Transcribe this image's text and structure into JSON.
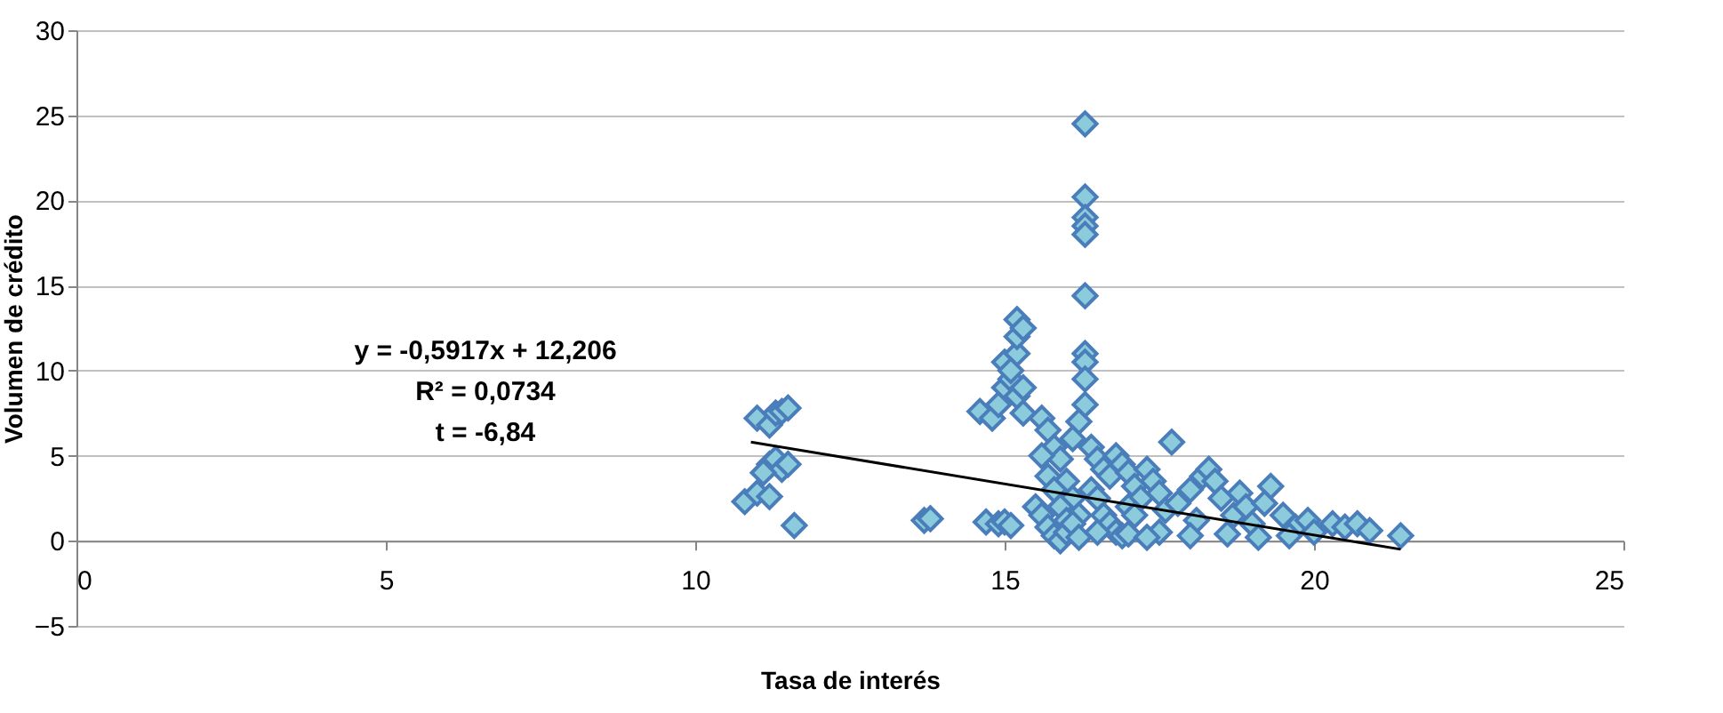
{
  "chart_data": {
    "type": "scatter",
    "xlabel": "Tasa de interés",
    "ylabel": "Volumen de crédito",
    "xlim": [
      0,
      25
    ],
    "ylim": [
      -5,
      30
    ],
    "xticks": [
      0,
      5,
      10,
      15,
      20,
      25
    ],
    "yticks": [
      -5,
      0,
      5,
      10,
      15,
      20,
      25,
      30
    ],
    "grid": "y",
    "annotations": [
      "y = -0,5917x + 12,206",
      "R² = 0,0734",
      "t = -6,84"
    ],
    "series": [
      {
        "color": "#8ccbdc",
        "marker": "diamond",
        "x": [
          10.8,
          11.0,
          11.2,
          11.0,
          11.2,
          11.3,
          11.4,
          11.5,
          11.2,
          11.3,
          11.4,
          11.5,
          11.6,
          11.1,
          13.7,
          13.8,
          14.7,
          14.9,
          15.0,
          15.1,
          14.6,
          14.8,
          14.9,
          15.0,
          15.1,
          15.0,
          15.2,
          15.2,
          15.2,
          15.3,
          15.1,
          15.2,
          15.3,
          15.3,
          16.3,
          16.3,
          16.3,
          16.3,
          16.3,
          16.3,
          16.3,
          16.3,
          16.3,
          16.3,
          16.2,
          16.1,
          15.6,
          15.7,
          15.8,
          15.9,
          16.0,
          16.1,
          16.2,
          15.6,
          15.7,
          15.8,
          15.9,
          16.0,
          16.4,
          16.5,
          15.5,
          15.6,
          15.7,
          15.8,
          15.9,
          16.0,
          16.1,
          16.2,
          16.4,
          16.5,
          16.6,
          16.7,
          16.8,
          16.9,
          17.0,
          17.1,
          17.2,
          16.6,
          16.7,
          16.8,
          16.9,
          17.0,
          17.1,
          17.3,
          17.4,
          17.5,
          17.7,
          17.6,
          17.8,
          18.0,
          18.2,
          18.3,
          18.4,
          18.1,
          18.5,
          18.7,
          18.8,
          18.9,
          19.0,
          19.3,
          19.2,
          19.5,
          19.7,
          19.9,
          20.0,
          20.3,
          20.5,
          20.7,
          20.9,
          21.4,
          17.5,
          18.0,
          18.6,
          19.1,
          19.6,
          16.5,
          17.0,
          17.3
        ],
        "values": [
          2.3,
          2.8,
          2.6,
          7.2,
          6.8,
          7.5,
          7.6,
          7.8,
          4.5,
          4.8,
          4.2,
          4.5,
          0.9,
          4.0,
          1.2,
          1.3,
          1.1,
          1.0,
          1.1,
          0.9,
          7.6,
          7.2,
          8.0,
          9.0,
          9.5,
          10.5,
          11.0,
          12.0,
          13.0,
          12.5,
          10.0,
          8.5,
          7.5,
          9.0,
          24.5,
          20.2,
          19.0,
          18.5,
          18.0,
          14.4,
          11.0,
          10.5,
          9.5,
          8.0,
          7.0,
          6.0,
          7.2,
          6.5,
          5.5,
          4.8,
          3.5,
          2.5,
          1.5,
          5.0,
          3.8,
          3.0,
          2.0,
          1.2,
          5.5,
          4.8,
          2.0,
          1.5,
          0.8,
          0.3,
          0.0,
          0.5,
          1.0,
          0.2,
          3.0,
          2.5,
          4.2,
          3.8,
          5.0,
          4.5,
          4.0,
          3.2,
          2.5,
          1.5,
          1.0,
          0.5,
          0.3,
          2.0,
          1.5,
          4.2,
          3.5,
          2.8,
          5.8,
          1.8,
          2.2,
          3.0,
          3.8,
          4.2,
          3.5,
          1.2,
          2.5,
          1.5,
          2.8,
          2.0,
          1.0,
          3.2,
          2.2,
          1.5,
          0.8,
          1.2,
          0.5,
          1.0,
          0.8,
          1.0,
          0.6,
          0.3,
          0.5,
          0.3,
          0.4,
          0.2,
          0.3,
          0.5,
          0.4,
          0.2
        ]
      },
      {
        "type": "line",
        "marker": "none",
        "color": "#000000",
        "x": [
          10.9,
          21.4
        ],
        "values": [
          5.8,
          -0.5
        ]
      }
    ]
  }
}
